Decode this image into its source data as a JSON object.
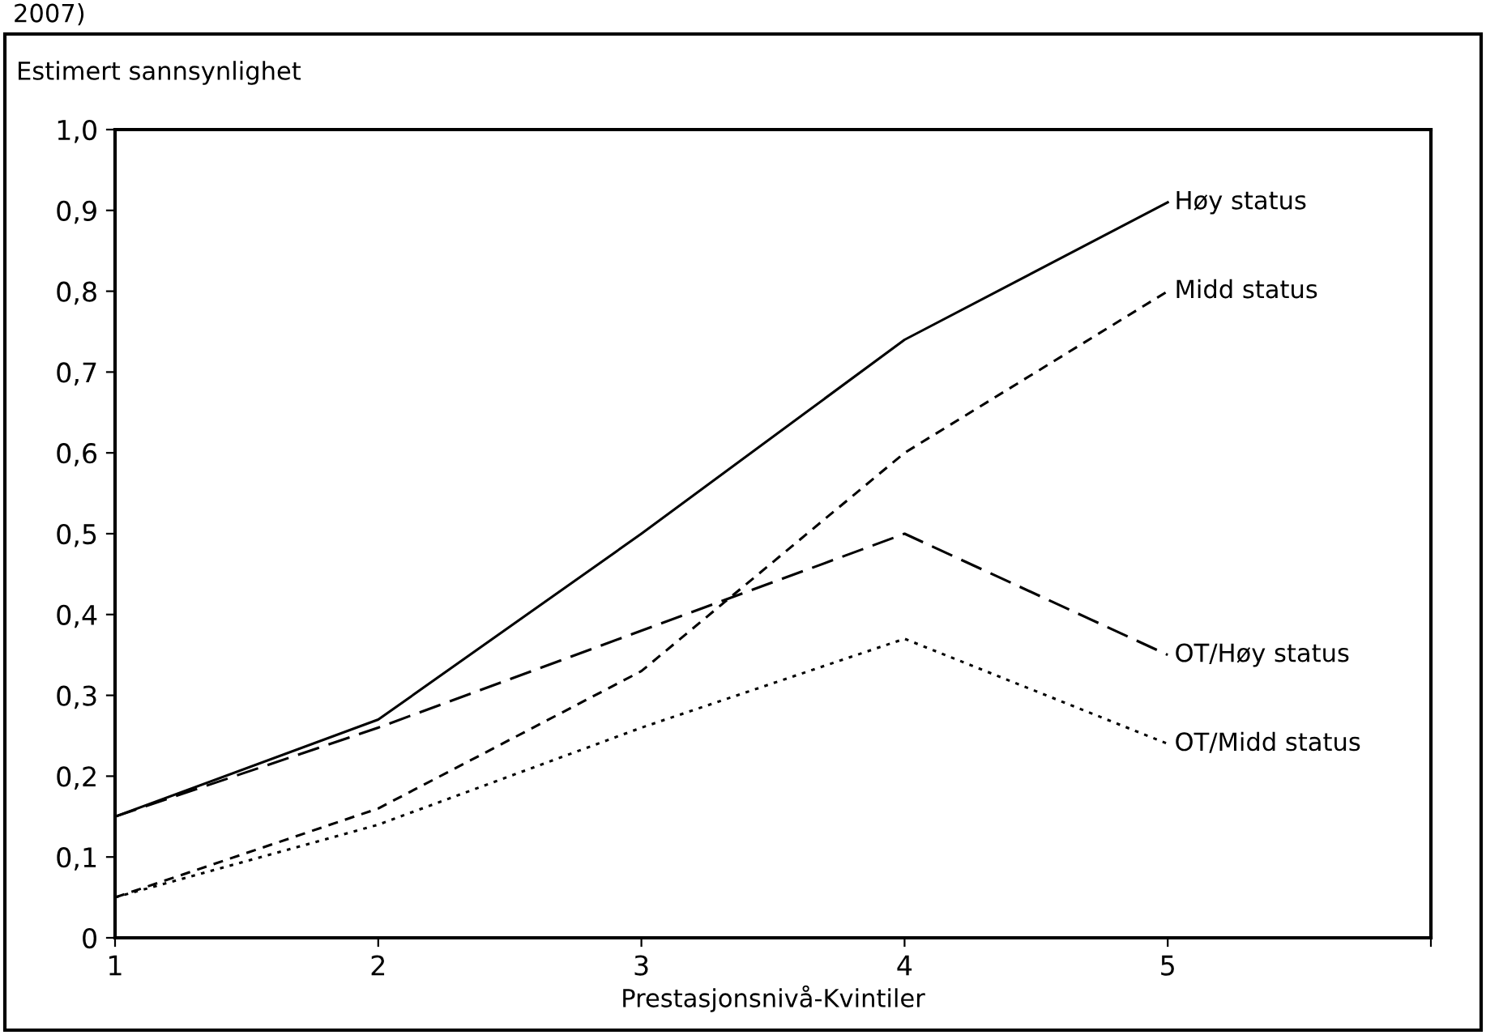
{
  "chart_data": {
    "type": "line",
    "ylabel": "Estimert sannsynlighet",
    "xlabel": "Prestasjonsnivå-Kvintiler",
    "annotations": [
      "2007)"
    ],
    "x": [
      1,
      2,
      3,
      4,
      5
    ],
    "series": [
      {
        "name": "Høy status",
        "color": "#000000",
        "line_style": "solid",
        "values": [
          0.15,
          0.27,
          0.5,
          0.74,
          0.91
        ]
      },
      {
        "name": "Midd status",
        "color": "#000000",
        "line_style": "dashed",
        "values": [
          0.05,
          0.16,
          0.33,
          0.6,
          0.8
        ]
      },
      {
        "name": "OT/Høy status",
        "color": "#000000",
        "line_style": "dashed",
        "values": [
          0.15,
          0.26,
          0.38,
          0.5,
          0.35
        ]
      },
      {
        "name": "OT/Midd status",
        "color": "#000000",
        "line_style": "dotted",
        "values": [
          0.05,
          0.14,
          0.26,
          0.37,
          0.24
        ]
      }
    ],
    "xlim": [
      1,
      6
    ],
    "xticks": [
      1,
      2,
      3,
      4,
      5,
      {
        "value": 6,
        "label": null
      }
    ],
    "ylim": [
      0,
      1.0
    ],
    "yticks": [
      0,
      {
        "value": 0.1,
        "label": "0,1"
      },
      {
        "value": 0.2,
        "label": "0,2"
      },
      {
        "value": 0.3,
        "label": "0,3"
      },
      {
        "value": 0.4,
        "label": "0,4"
      },
      {
        "value": 0.5,
        "label": "0,5"
      },
      {
        "value": 0.6,
        "label": "0,6"
      },
      {
        "value": 0.7,
        "label": "0,7"
      },
      {
        "value": 0.8,
        "label": "0,8"
      },
      {
        "value": 0.9,
        "label": "0,9"
      },
      {
        "value": 1.0,
        "label": "1,0"
      }
    ],
    "grid": false,
    "legend": false,
    "marker": "none"
  }
}
